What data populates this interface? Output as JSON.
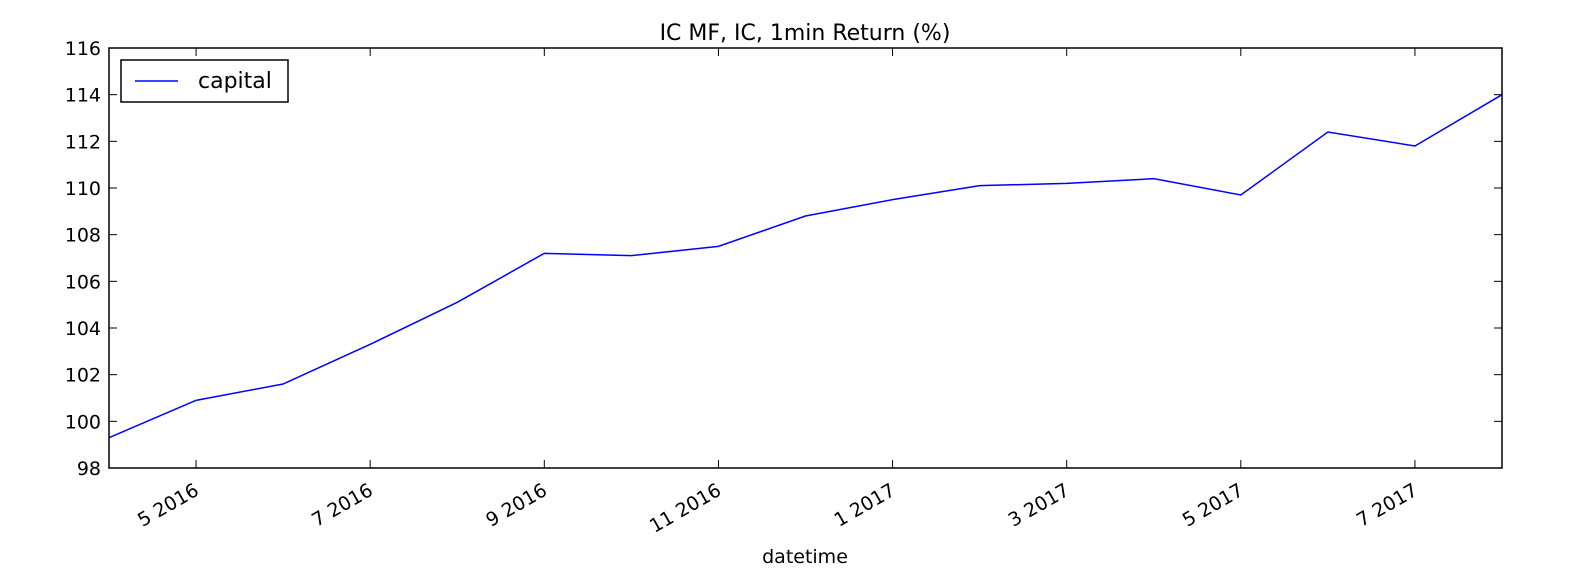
{
  "chart_data": {
    "type": "line",
    "title": "IC MF, IC, 1min Return (%)",
    "x_label": "datetime",
    "x": [
      "2016-04",
      "2016-05",
      "2016-06",
      "2016-07",
      "2016-08",
      "2016-09",
      "2016-10",
      "2016-11",
      "2016-12",
      "2017-01",
      "2017-02",
      "2017-03",
      "2017-04",
      "2017-05",
      "2017-06",
      "2017-07",
      "2017-08"
    ],
    "series": [
      {
        "name": "capital",
        "color": "#0000ff",
        "values": [
          99.3,
          100.9,
          101.6,
          103.3,
          105.1,
          107.2,
          107.1,
          107.5,
          108.8,
          109.5,
          110.1,
          110.2,
          110.4,
          109.7,
          112.4,
          111.8,
          114.0
        ]
      }
    ],
    "xlim": [
      "2016-04",
      "2017-08"
    ],
    "xticks": [
      {
        "value": "2016-05",
        "label": "5 2016"
      },
      {
        "value": "2016-07",
        "label": "7 2016"
      },
      {
        "value": "2016-09",
        "label": "9 2016"
      },
      {
        "value": "2016-11",
        "label": "11 2016"
      },
      {
        "value": "2017-01",
        "label": "1 2017"
      },
      {
        "value": "2017-03",
        "label": "3 2017"
      },
      {
        "value": "2017-05",
        "label": "5 2017"
      },
      {
        "value": "2017-07",
        "label": "7 2017"
      }
    ],
    "ylim": [
      98,
      116
    ],
    "yticks": [
      98,
      100,
      102,
      104,
      106,
      108,
      110,
      112,
      114,
      116
    ],
    "grid": false,
    "legend": "upper left"
  }
}
